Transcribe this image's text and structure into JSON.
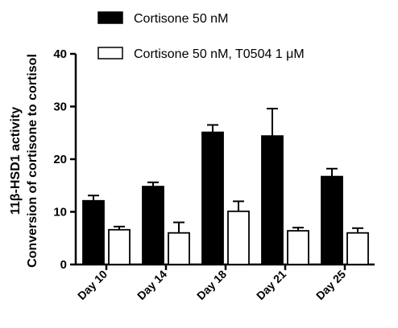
{
  "chart_data": {
    "type": "bar",
    "categories": [
      "Day 10",
      "Day 14",
      "Day 18",
      "Day 21",
      "Day 25"
    ],
    "series": [
      {
        "name": "Cortisone 50 nM",
        "fill": "#000000",
        "values": [
          12.1,
          14.8,
          25.1,
          24.4,
          16.7
        ],
        "errors": [
          1.0,
          0.8,
          1.4,
          5.2,
          1.5
        ]
      },
      {
        "name": "Cortisone 50 nM, T0504 1 μM",
        "fill": "#ffffff",
        "values": [
          6.6,
          6.0,
          10.1,
          6.4,
          6.0
        ],
        "errors": [
          0.6,
          2.0,
          1.9,
          0.6,
          0.9
        ]
      }
    ],
    "ylabel_line1": "11β-HSD1 activity",
    "ylabel_line2": "Conversion of cortisone to cortisol",
    "ylim": [
      0,
      40
    ],
    "yticks": [
      0,
      10,
      20,
      30,
      40
    ],
    "grid": false,
    "legend_position": "top"
  }
}
